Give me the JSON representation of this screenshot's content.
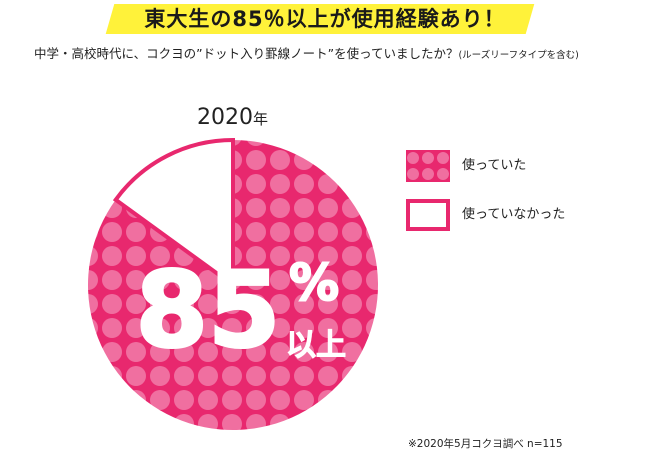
{
  "header": {
    "title": "東大生の85％以上が使用経験あり！",
    "question": "中学・高校時代に、コクヨの”ドット入り罫線ノート”を使っていましたか？",
    "question_note": "(ルーズリーフタイプを含む)"
  },
  "chart_data": {
    "type": "pie",
    "year_label": "2020",
    "year_unit": "年",
    "center_value": "85",
    "center_percent": "%",
    "center_suffix": "以上",
    "slices": [
      {
        "name": "使っていた",
        "value": 85,
        "color": "#e8286e",
        "pattern": "dots"
      },
      {
        "name": "使っていなかった",
        "value": 15,
        "color": "#ffffff",
        "pattern": "none"
      }
    ],
    "legend_position": "right"
  },
  "legend": {
    "items": [
      {
        "label": "使っていた"
      },
      {
        "label": "使っていなかった"
      }
    ]
  },
  "footer": {
    "source": "※2020年5月コクヨ調べ n=115"
  },
  "colors": {
    "accent": "#e8286e",
    "dot": "#f06fa0",
    "highlight": "#fff23a"
  }
}
